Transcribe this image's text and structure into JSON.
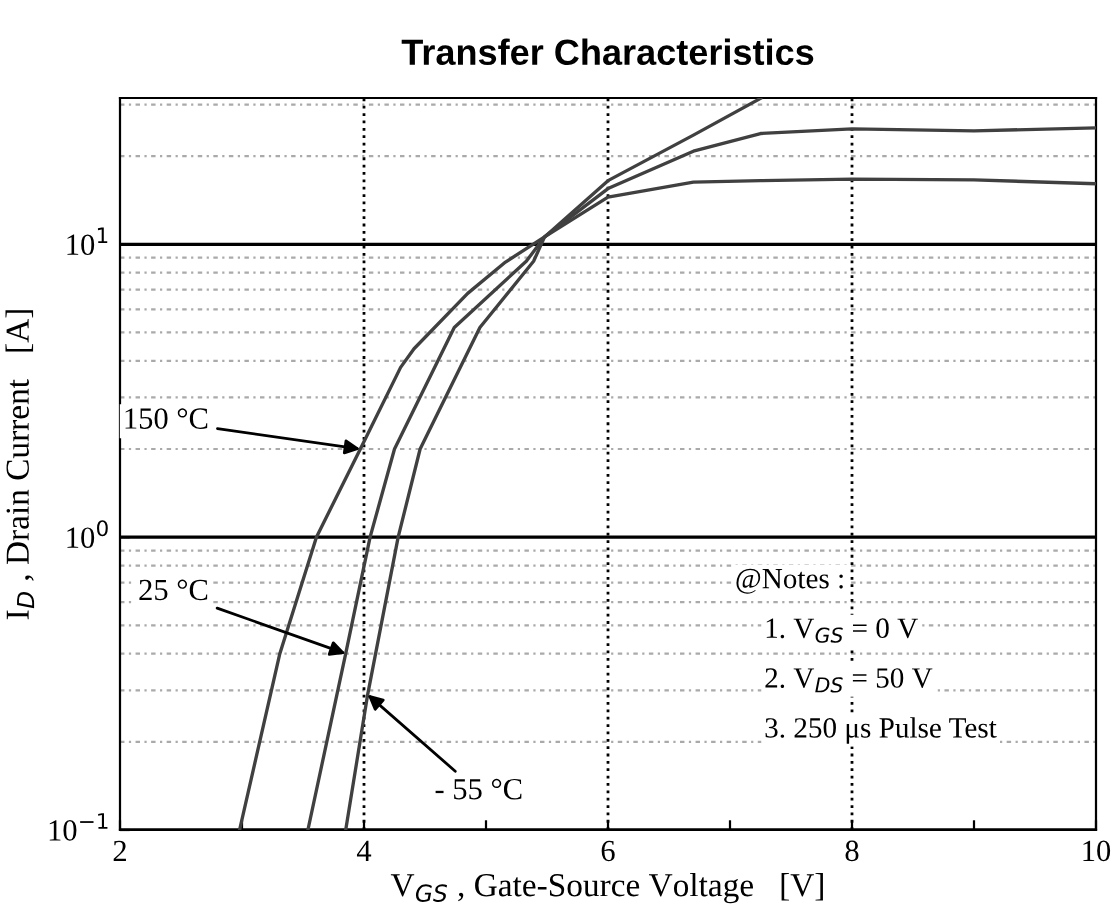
{
  "chart_data": {
    "type": "line",
    "title": "Transfer Characteristics",
    "xlabel": "V$_{GS}$ , Gate-Source Voltage   [V]",
    "ylabel": "I$_{D}$ , Drain Current   [A]",
    "log": "y",
    "xlim": [
      2,
      10
    ],
    "ylim": [
      0.1,
      31.6
    ],
    "xticks": [
      2,
      {
        "value": 3,
        "label": null
      },
      4,
      {
        "value": 5,
        "label": null
      },
      6,
      {
        "value": 7,
        "label": null
      },
      8,
      {
        "value": 9,
        "label": null
      },
      10
    ],
    "yticks": [
      {
        "value": 0.1,
        "label": "10$^{−1}$"
      },
      {
        "value": 1,
        "label": "10$^{0}$"
      },
      {
        "value": 10,
        "label": "10$^{1}$"
      }
    ],
    "grid": true,
    "legend": false,
    "marker": "none",
    "line_style": "solid",
    "series": [
      {
        "color": "#404040",
        "x": [
          2.98,
          3.31,
          3.61,
          3.97,
          4.3,
          4.41,
          4.85,
          5.16,
          5.48,
          6.0,
          6.7,
          7.25,
          8,
          9,
          10
        ],
        "values": [
          0.1,
          0.4,
          1.0,
          2.0,
          3.8,
          4.4,
          6.8,
          8.7,
          10.6,
          14.5,
          16.3,
          16.5,
          16.7,
          16.6,
          16.1
        ]
      },
      {
        "color": "#404040",
        "x": [
          3.54,
          3.85,
          4.05,
          4.25,
          4.74,
          5.33,
          5.48,
          6.0,
          6.7,
          7.25,
          8,
          9,
          10
        ],
        "values": [
          0.1,
          0.4,
          1.0,
          2.0,
          5.2,
          8.75,
          10.6,
          15.5,
          20.8,
          23.9,
          24.8,
          24.4,
          25
        ]
      },
      {
        "color": "#404040",
        "x": [
          3.85,
          4.03,
          4.28,
          4.46,
          4.95,
          5.39,
          5.48,
          6.0,
          6.7,
          7.25
        ],
        "values": [
          0.1,
          0.29,
          1.0,
          2.0,
          5.2,
          8.75,
          10.6,
          16.5,
          23.6,
          31.5
        ]
      }
    ],
    "annotations": [
      {
        "text": "150 °C",
        "x": 3.97,
        "y": 2.0
      },
      {
        "text": "25 °C",
        "x": 3.85,
        "y": 0.4
      },
      {
        "text": "- 55 °C",
        "x": 4.03,
        "y": 0.29
      },
      "@Notes :",
      "1. V$_{GS}$ = 0 V",
      "2. V$_{DS}$ = 50 V",
      "3. 250 μs Pulse Test"
    ]
  }
}
